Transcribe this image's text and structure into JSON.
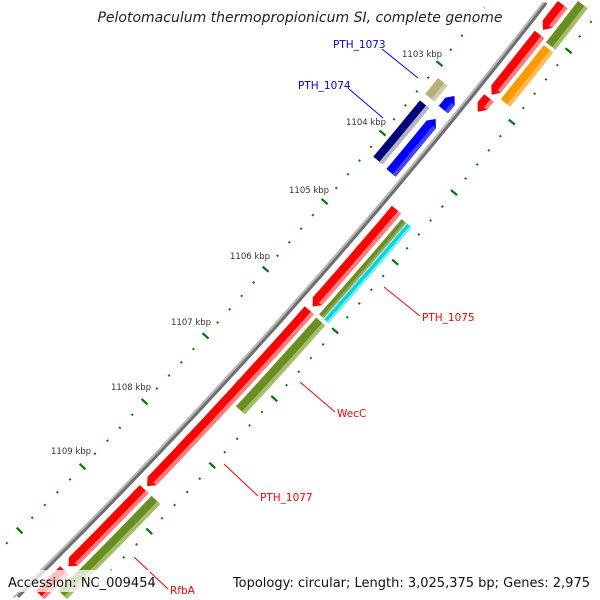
{
  "title": "Pelotomaculum thermopropionicum SI, complete genome",
  "ruler": {
    "labels": [
      "1103 kbp",
      "1104 kbp",
      "1105 kbp",
      "1106 kbp",
      "1107 kbp",
      "1108 kbp",
      "1109 kbp"
    ]
  },
  "features": {
    "labels": [
      {
        "text": "PTH_1073",
        "color": "#0000ff"
      },
      {
        "text": "PTH_1074",
        "color": "#0000ff"
      },
      {
        "text": "PTH_1075",
        "color": "#ff0000"
      },
      {
        "text": "WecC",
        "color": "#ff0000"
      },
      {
        "text": "PTH_1077",
        "color": "#ff0000"
      },
      {
        "text": "RfbA",
        "color": "#ff0000"
      }
    ]
  },
  "footer": {
    "accession": "Accession: NC_009454",
    "info": "Topology: circular; Length: 3,025,375 bp; Genes: 2,975"
  },
  "colors": {
    "backbone": "#888888",
    "ruler": "#007700",
    "red": "#ff0000",
    "olive": "#6b8e23",
    "cyan": "#00d8e0",
    "orange": "#ff9900",
    "blue": "#0000ff",
    "navy": "#000080",
    "khaki": "#b5b07a"
  }
}
